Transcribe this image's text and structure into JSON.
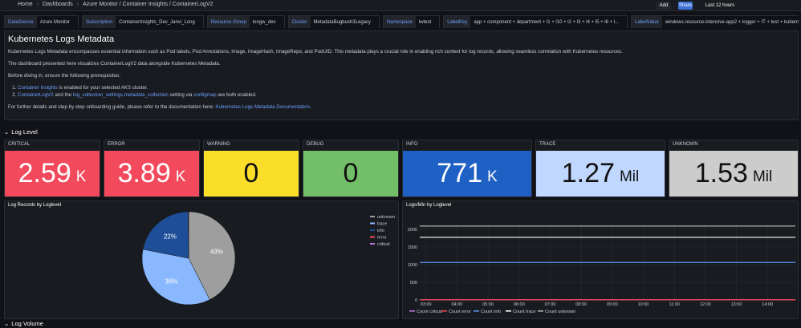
{
  "header": {
    "breadcrumbs": [
      "Home",
      "Dashboards",
      "Azure Monitor / Container Insights / ContainerLogV2"
    ],
    "buttons": [
      "Add",
      "Share",
      "Last 12 hours"
    ]
  },
  "variables": [
    {
      "label": "DataSource",
      "value": "Azure Monitor"
    },
    {
      "label": "Subscription",
      "value": "ContainerInsights_Dev_Janvi_Long"
    },
    {
      "label": "Resource Group",
      "value": "longw_dev"
    },
    {
      "label": "Cluster",
      "value": "MetadataBugbush3Legacy"
    },
    {
      "label": "Namespace",
      "value": "lwtest"
    },
    {
      "label": "LabelKey",
      "value": "app + component + department + l1 + l10 + l2 + l3 + l4 + l5 + l6 + l..."
    },
    {
      "label": "LabelValue",
      "value": "windows-resource-intensive-app2 + logger + IT + test + kubernete..."
    }
  ],
  "text_panel": {
    "title": "Kubernetes Logs Metadata",
    "paragraphs": [
      [
        "Kubernetes Logs Metadata encompasses essential information such as Pod labels, Pod Annotations, Image, ImageHash, ImageRepo, and PodUID. This metadata plays a crucial role in enabling rich context for log records, allowing seamless correlation with Kubernetes resources."
      ],
      [
        "The dashboard presented here visualizes ContainerLogV2 data alongside Kubernetes Metadata."
      ],
      [
        "Before diving in, ensure the following prerequisites:"
      ]
    ],
    "list": [
      [
        {
          "link": "Container Insights"
        },
        " is enabled for your selected AKS cluster."
      ],
      [
        {
          "link": "ContainerLogV2"
        },
        " and the ",
        {
          "link": "log_collection_settings.metadata_collection"
        },
        " setting via ",
        {
          "link": "configmap"
        },
        " are both enabled."
      ]
    ],
    "footer": [
      "For further details and step by step onboarding guide, please refer to the documentation here: ",
      {
        "link": "Kubernetes Logs Metadata Documentation"
      },
      "."
    ]
  },
  "rows": [
    "Log Level",
    "Log Volume"
  ],
  "stats": [
    {
      "title": "CRITICAL",
      "value": 2.59,
      "unit": "K",
      "color": "#f2495c"
    },
    {
      "title": "ERROR",
      "value": 3.89,
      "unit": "K",
      "color": "#f2495c"
    },
    {
      "title": "WARNING",
      "value": 0,
      "color": "#fade2a"
    },
    {
      "title": "DEBUG",
      "value": 0,
      "color": "#73bf69"
    },
    {
      "title": "INFO",
      "value": 771,
      "unit": "K",
      "color": "#1f60c4"
    },
    {
      "title": "TRACE",
      "value": 1.27,
      "unit": "Mil",
      "color": "#c0d8ff"
    },
    {
      "title": "UNKNOWN",
      "value": 1.53,
      "unit": "Mil",
      "color": "#cccccc"
    }
  ],
  "chart_data": [
    {
      "type": "pie",
      "title": "Log Records by Loglevel",
      "categories": [
        "unknown",
        "trace",
        "info",
        "error",
        "critical"
      ],
      "values": [
        43,
        36,
        22,
        0.11,
        0.07
      ],
      "value_labels": [
        "43%",
        "36%",
        "22%",
        null,
        null
      ],
      "colors": [
        "#9e9e9e",
        "#8ab8ff",
        "#1f4e98",
        "#f2495c",
        "#b877d9"
      ]
    },
    {
      "type": "line",
      "title": "Logs/Min by Loglevel",
      "x": [
        2.8,
        14.9
      ],
      "xlim": [
        2.8,
        14.9
      ],
      "xticks": [
        {
          "value": 3,
          "label": "03:00"
        },
        {
          "value": 4,
          "label": "04:00"
        },
        {
          "value": 5,
          "label": "05:00"
        },
        {
          "value": 6,
          "label": "06:00"
        },
        {
          "value": 7,
          "label": "07:00"
        },
        {
          "value": 8,
          "label": "08:00"
        },
        {
          "value": 9,
          "label": "09:00"
        },
        {
          "value": 10,
          "label": "10:00"
        },
        {
          "value": 11,
          "label": "11:00"
        },
        {
          "value": 12,
          "label": "12:00"
        },
        {
          "value": 13,
          "label": "13:00"
        },
        {
          "value": 14,
          "label": "14:00"
        }
      ],
      "ylim": [
        0,
        2200
      ],
      "yticks": [
        0,
        500,
        1000,
        1500,
        2000
      ],
      "grid": true,
      "series": [
        {
          "name": "Count critical",
          "color": "#b877d9",
          "values": [
            4,
            4
          ]
        },
        {
          "name": "Count error",
          "color": "#f2495c",
          "values": [
            5,
            5
          ]
        },
        {
          "name": "Count info",
          "color": "#5794f2",
          "values": [
            1060,
            1060
          ]
        },
        {
          "name": "Count trace",
          "color": "#ffffff",
          "values": [
            1770,
            1770
          ]
        },
        {
          "name": "Count unknown",
          "color": "#b3b3b3",
          "values": [
            2090,
            2090
          ]
        }
      ]
    }
  ]
}
